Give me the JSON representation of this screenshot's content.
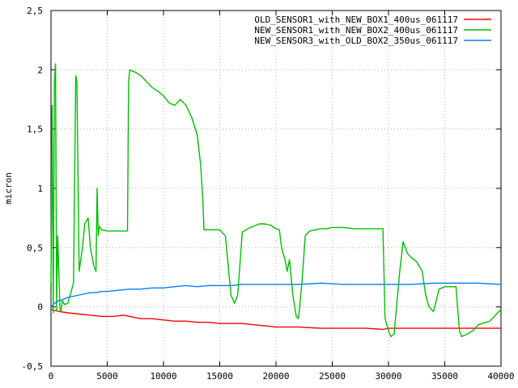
{
  "chart_data": {
    "type": "line",
    "title": "",
    "xlabel": "",
    "ylabel": "micron",
    "xlim": [
      0,
      40000
    ],
    "ylim": [
      -0.5,
      2.5
    ],
    "grid": true,
    "legend_position": "top-right",
    "x_ticks": [
      {
        "value": 0,
        "label": "0"
      },
      {
        "value": 5000,
        "label": "5000"
      },
      {
        "value": 10000,
        "label": "10000"
      },
      {
        "value": 15000,
        "label": "15000"
      },
      {
        "value": 20000,
        "label": "20000"
      },
      {
        "value": 25000,
        "label": "25000"
      },
      {
        "value": 30000,
        "label": "30000"
      },
      {
        "value": 35000,
        "label": "35000"
      },
      {
        "value": 40000,
        "label": "40000"
      }
    ],
    "y_ticks": [
      {
        "value": -0.5,
        "label": "-0,5"
      },
      {
        "value": 0,
        "label": "0"
      },
      {
        "value": 0.5,
        "label": "0,5"
      },
      {
        "value": 1,
        "label": "1"
      },
      {
        "value": 1.5,
        "label": "1,5"
      },
      {
        "value": 2,
        "label": "2"
      },
      {
        "value": 2.5,
        "label": "2,5"
      }
    ],
    "series": [
      {
        "name": "OLD_SENSOR1_with_NEW_BOX1_400us_061117",
        "color": "#ff0000",
        "x": [
          0,
          300,
          800,
          1500,
          2500,
          3500,
          4500,
          5500,
          6500,
          7000,
          8000,
          9000,
          10000,
          11000,
          12000,
          13000,
          14000,
          15000,
          16000,
          17000,
          18000,
          19000,
          20000,
          22000,
          24000,
          26000,
          28000,
          29500,
          30000,
          32000,
          34000,
          36000,
          38000,
          40000
        ],
        "y": [
          -0.02,
          -0.03,
          -0.04,
          -0.05,
          -0.06,
          -0.07,
          -0.08,
          -0.08,
          -0.07,
          -0.08,
          -0.1,
          -0.1,
          -0.11,
          -0.12,
          -0.12,
          -0.13,
          -0.13,
          -0.14,
          -0.14,
          -0.14,
          -0.15,
          -0.16,
          -0.17,
          -0.17,
          -0.18,
          -0.18,
          -0.18,
          -0.19,
          -0.18,
          -0.18,
          -0.18,
          -0.18,
          -0.18,
          -0.18
        ]
      },
      {
        "name": "NEW_SENSOR1_with_NEW_BOX2_400us_061117",
        "color": "#00c000",
        "x": [
          0,
          100,
          200,
          300,
          400,
          500,
          600,
          700,
          800,
          900,
          1000,
          1200,
          1500,
          2000,
          2200,
          2300,
          2500,
          2800,
          3000,
          3300,
          3500,
          3800,
          4000,
          4100,
          4200,
          4300,
          4500,
          5000,
          6000,
          6800,
          6900,
          7000,
          7200,
          7500,
          8000,
          8500,
          9000,
          9500,
          10000,
          10500,
          11000,
          11500,
          12000,
          12500,
          13000,
          13300,
          13500,
          13600,
          14000,
          15000,
          15500,
          16000,
          16300,
          16600,
          17000,
          17500,
          18000,
          18500,
          19000,
          19500,
          20000,
          20300,
          20500,
          20800,
          21000,
          21200,
          21500,
          21800,
          22000,
          22300,
          22600,
          23000,
          23500,
          24000,
          24500,
          25000,
          26000,
          27000,
          28000,
          29000,
          29500,
          29700,
          30000,
          30200,
          30500,
          31000,
          31300,
          31500,
          31700,
          32000,
          32500,
          33000,
          33300,
          33600,
          34000,
          34500,
          35000,
          36000,
          36300,
          36500,
          37000,
          37500,
          38000,
          39000,
          40000
        ],
        "y": [
          0.2,
          1.7,
          -0.05,
          1.9,
          2.05,
          -0.03,
          0.6,
          0.3,
          -0.02,
          -0.04,
          0.05,
          0.02,
          0.03,
          0.2,
          1.95,
          1.9,
          0.3,
          0.5,
          0.7,
          0.75,
          0.5,
          0.35,
          0.3,
          1.0,
          0.6,
          0.68,
          0.65,
          0.64,
          0.64,
          0.64,
          1.9,
          2.0,
          1.99,
          1.98,
          1.95,
          1.9,
          1.85,
          1.82,
          1.78,
          1.72,
          1.7,
          1.75,
          1.7,
          1.6,
          1.45,
          1.2,
          0.9,
          0.65,
          0.65,
          0.65,
          0.6,
          0.1,
          0.03,
          0.1,
          0.63,
          0.66,
          0.68,
          0.7,
          0.7,
          0.69,
          0.66,
          0.65,
          0.5,
          0.4,
          0.3,
          0.4,
          0.1,
          -0.08,
          -0.1,
          0.2,
          0.6,
          0.64,
          0.65,
          0.66,
          0.66,
          0.67,
          0.67,
          0.66,
          0.66,
          0.66,
          0.66,
          -0.1,
          -0.2,
          -0.25,
          -0.23,
          0.3,
          0.55,
          0.5,
          0.45,
          0.42,
          0.38,
          0.3,
          0.1,
          0.0,
          -0.04,
          0.15,
          0.17,
          0.17,
          -0.2,
          -0.25,
          -0.23,
          -0.2,
          -0.15,
          -0.12,
          -0.02
        ]
      },
      {
        "name": "NEW_SENSOR3_with_OLD_BOX2_350us_061117",
        "color": "#0080ff",
        "x": [
          0,
          300,
          600,
          1000,
          1500,
          2000,
          2500,
          3000,
          3500,
          4000,
          4500,
          5000,
          6000,
          7000,
          8000,
          9000,
          10000,
          11000,
          12000,
          13000,
          14000,
          15000,
          16000,
          17000,
          18000,
          19000,
          20000,
          22000,
          24000,
          26000,
          28000,
          30000,
          32000,
          34000,
          36000,
          38000,
          40000
        ],
        "y": [
          0.0,
          0.03,
          0.05,
          0.06,
          0.08,
          0.09,
          0.1,
          0.11,
          0.12,
          0.12,
          0.13,
          0.13,
          0.14,
          0.15,
          0.15,
          0.16,
          0.16,
          0.17,
          0.18,
          0.17,
          0.18,
          0.18,
          0.18,
          0.19,
          0.19,
          0.19,
          0.19,
          0.19,
          0.2,
          0.19,
          0.19,
          0.19,
          0.19,
          0.2,
          0.2,
          0.2,
          0.19
        ]
      }
    ]
  }
}
